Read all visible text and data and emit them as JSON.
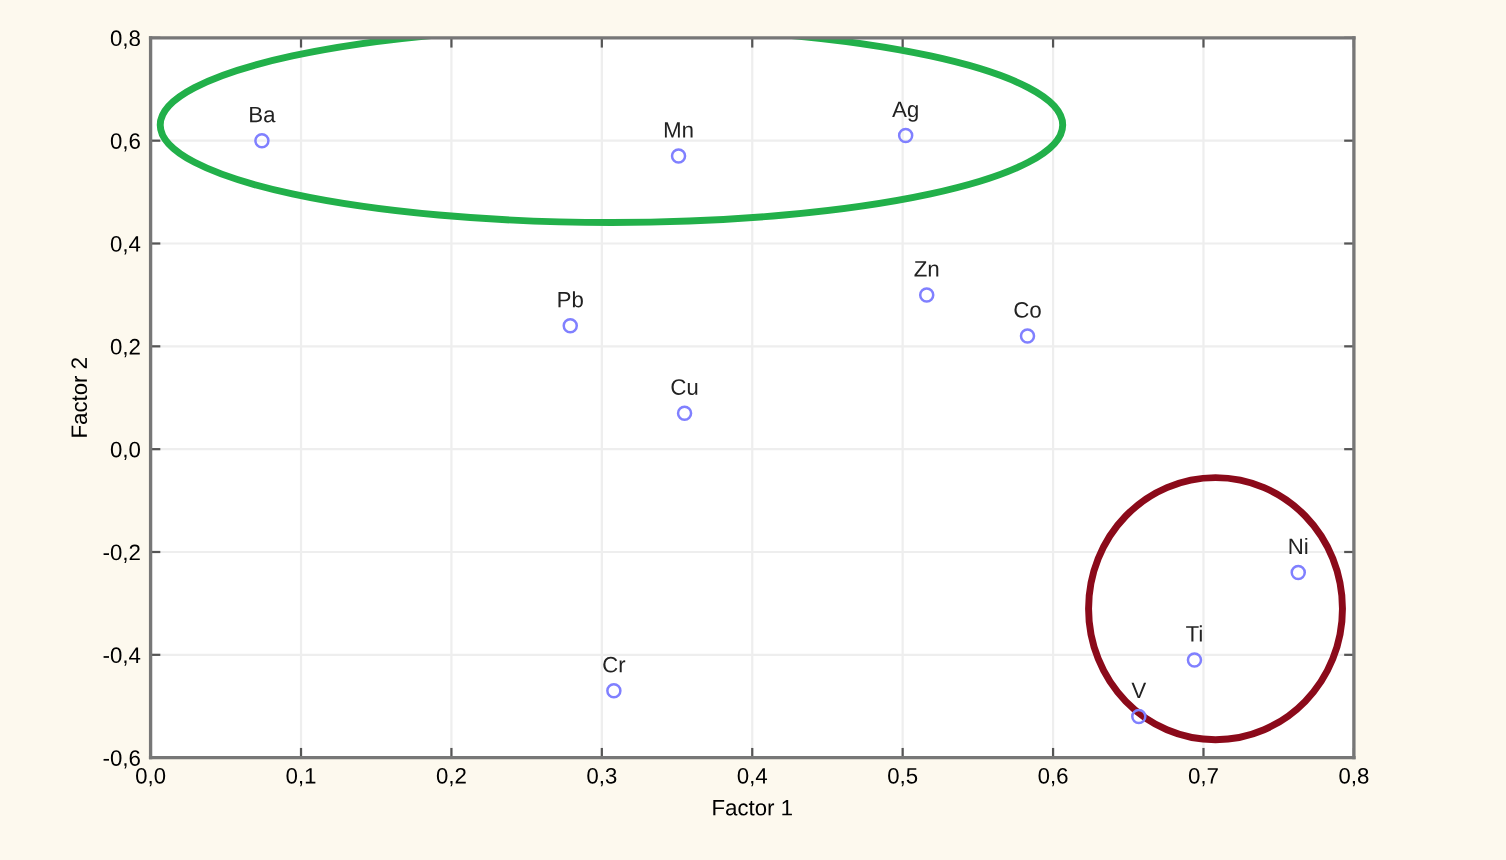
{
  "chart_data": {
    "type": "scatter",
    "xlabel": "Factor 1",
    "ylabel": "Factor 2",
    "x": [
      0.074,
      0.351,
      0.502,
      0.516,
      0.583,
      0.279,
      0.355,
      0.308,
      0.763,
      0.694,
      0.657
    ],
    "series": [
      {
        "color": "#8080ff",
        "values": [
          0.6,
          0.57,
          0.61,
          0.3,
          0.22,
          0.24,
          0.07,
          -0.47,
          -0.24,
          -0.41,
          -0.52
        ]
      }
    ],
    "annotations": [
      {
        "text": "Ba",
        "x": 0.074,
        "y": 0.6
      },
      {
        "text": "Mn",
        "x": 0.351,
        "y": 0.57
      },
      {
        "text": "Ag",
        "x": 0.502,
        "y": 0.61
      },
      {
        "text": "Zn",
        "x": 0.516,
        "y": 0.3
      },
      {
        "text": "Co",
        "x": 0.583,
        "y": 0.22
      },
      {
        "text": "Pb",
        "x": 0.279,
        "y": 0.24
      },
      {
        "text": "Cu",
        "x": 0.355,
        "y": 0.07
      },
      {
        "text": "Cr",
        "x": 0.308,
        "y": -0.47
      },
      {
        "text": "Ni",
        "x": 0.763,
        "y": -0.24
      },
      {
        "text": "Ti",
        "x": 0.694,
        "y": -0.41
      },
      {
        "text": "V",
        "x": 0.657,
        "y": -0.52
      }
    ],
    "xlim": [
      0.0,
      0.8
    ],
    "ylim": [
      -0.6,
      0.8
    ],
    "xticks": [
      {
        "value": 0.0,
        "label": "0,0"
      },
      {
        "value": 0.1,
        "label": "0,1"
      },
      {
        "value": 0.2,
        "label": "0,2"
      },
      {
        "value": 0.3,
        "label": "0,3"
      },
      {
        "value": 0.4,
        "label": "0,4"
      },
      {
        "value": 0.5,
        "label": "0,5"
      },
      {
        "value": 0.6,
        "label": "0,6"
      },
      {
        "value": 0.7,
        "label": "0,7"
      },
      {
        "value": 0.8,
        "label": "0,8"
      }
    ],
    "yticks": [
      {
        "value": -0.6,
        "label": "-0,6"
      },
      {
        "value": -0.4,
        "label": "-0,4"
      },
      {
        "value": -0.2,
        "label": "-0,2"
      },
      {
        "value": 0.0,
        "label": "0,0"
      },
      {
        "value": 0.2,
        "label": "0,2"
      },
      {
        "value": 0.4,
        "label": "0,4"
      },
      {
        "value": 0.6,
        "label": "0,6"
      },
      {
        "value": 0.8,
        "label": "0,8"
      }
    ],
    "grid": true,
    "marker": "circle"
  }
}
